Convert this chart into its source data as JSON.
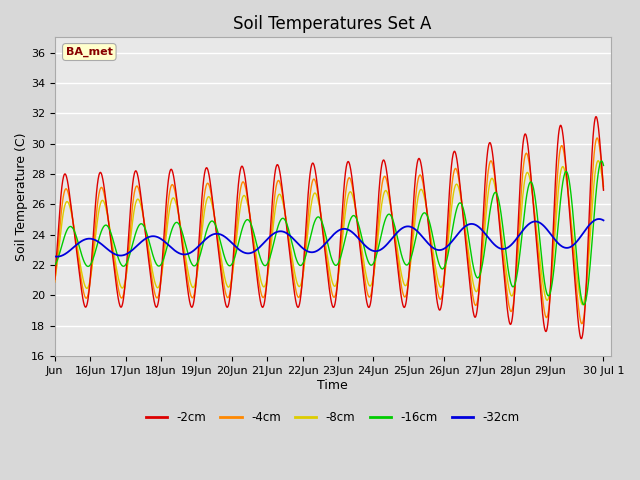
{
  "title": "Soil Temperatures Set A",
  "xlabel": "Time",
  "ylabel": "Soil Temperature (C)",
  "ylim": [
    16,
    37
  ],
  "yticks": [
    16,
    18,
    20,
    22,
    24,
    26,
    28,
    30,
    32,
    34,
    36
  ],
  "colors": {
    "-2cm": "#dd0000",
    "-4cm": "#ff8800",
    "-8cm": "#ddcc00",
    "-16cm": "#00cc00",
    "-32cm": "#0000dd"
  },
  "legend_labels": [
    "-2cm",
    "-4cm",
    "-8cm",
    "-16cm",
    "-32cm"
  ],
  "background_color": "#d8d8d8",
  "plot_bg_color": "#e8e8e8",
  "ba_met_text": "BA_met",
  "ba_met_text_color": "#880000",
  "ba_met_bg_color": "#ffffcc",
  "title_fontsize": 12,
  "axis_label_fontsize": 9,
  "tick_fontsize": 8
}
